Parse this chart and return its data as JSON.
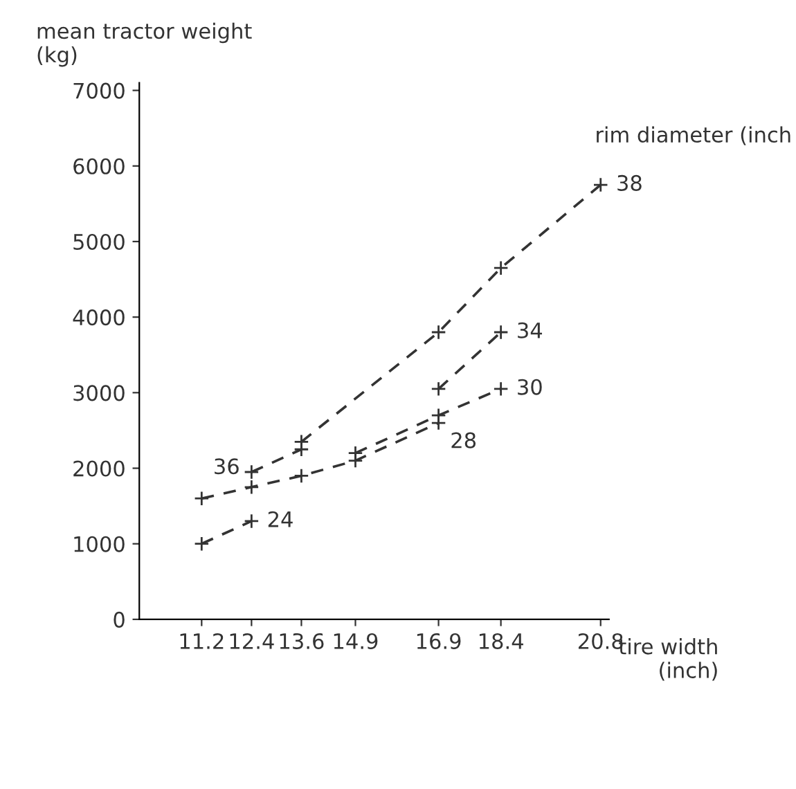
{
  "chart_data": {
    "type": "line",
    "ylabel": "mean tractor weight\n(kg)",
    "xlabel": "tire width\n(inch)",
    "line_style": "dashed",
    "marker": "cross",
    "grid": false,
    "xlim": [
      9.7,
      21.0
    ],
    "xticks": [
      11.2,
      12.4,
      13.6,
      14.9,
      16.9,
      18.4,
      20.8
    ],
    "ylim": [
      0,
      7100
    ],
    "yticks": [
      0,
      1000,
      2000,
      3000,
      4000,
      5000,
      6000,
      7000
    ],
    "series": [
      {
        "name": "24",
        "color": "#333333",
        "x": [
          11.2,
          12.4
        ],
        "values": [
          1000,
          1300
        ]
      },
      {
        "name": "28",
        "color": "#333333",
        "x": [
          11.2,
          12.4,
          13.6,
          14.9,
          16.9
        ],
        "values": [
          1600,
          1750,
          1900,
          2100,
          2600
        ]
      },
      {
        "name": "30",
        "color": "#333333",
        "x": [
          14.9,
          16.9,
          18.4
        ],
        "values": [
          2200,
          2700,
          3050
        ]
      },
      {
        "name": "36",
        "color": "#333333",
        "x": [
          12.4,
          13.6
        ],
        "values": [
          1950,
          2250
        ]
      },
      {
        "name": "38",
        "color": "#333333",
        "x": [
          13.6,
          16.9,
          18.4,
          20.8
        ],
        "values": [
          2350,
          3800,
          4650,
          5750
        ]
      },
      {
        "name": "34",
        "color": "#333333",
        "x": [
          16.9,
          18.4
        ],
        "values": [
          3050,
          3800
        ]
      }
    ],
    "annotations": [
      "rim diameter (inch"
    ]
  }
}
